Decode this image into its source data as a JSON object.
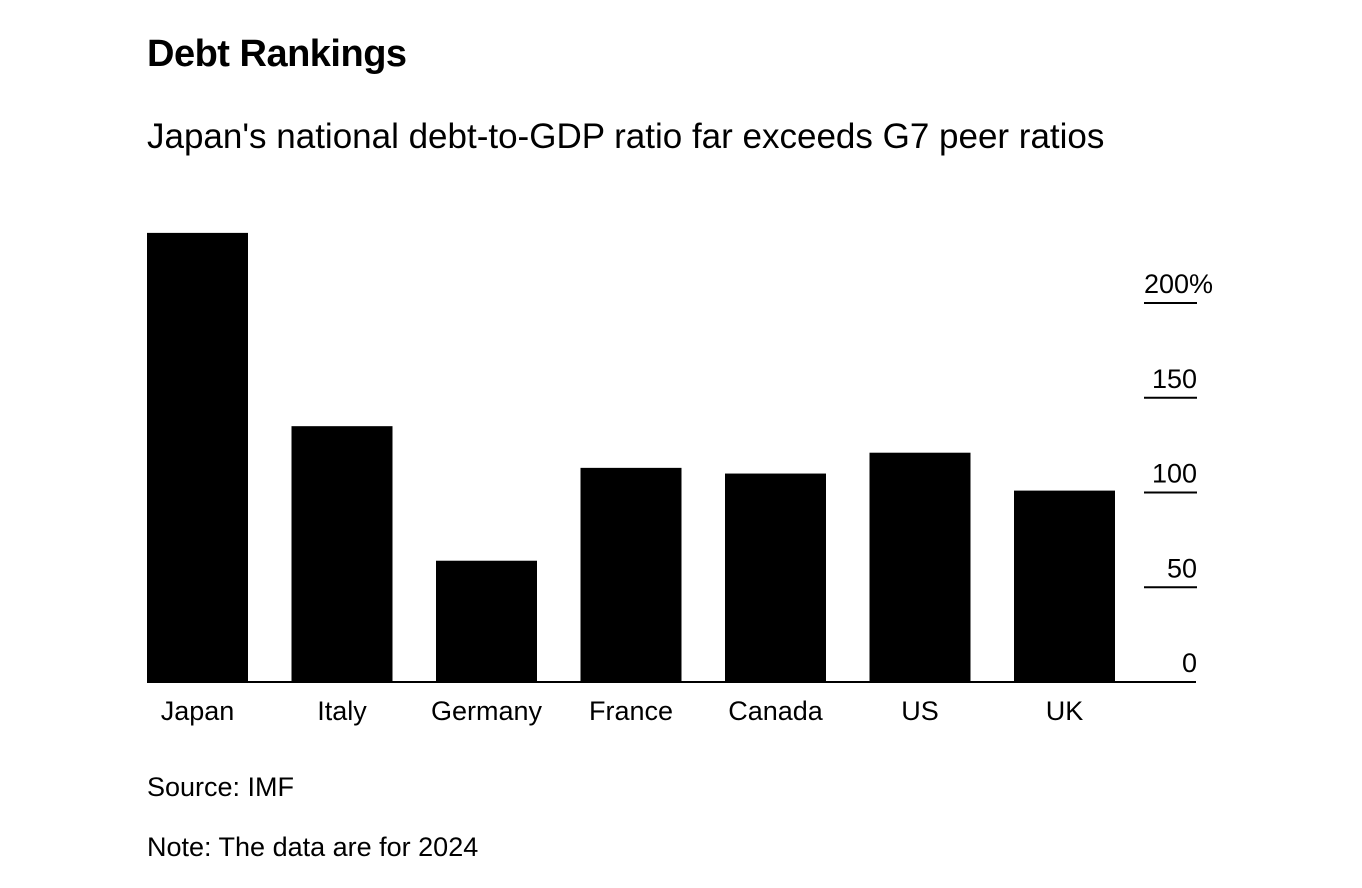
{
  "title": "Debt Rankings",
  "subtitle": "Japan's national debt-to-GDP ratio far exceeds G7 peer ratios",
  "source": "Source: IMF",
  "note": "Note: The data are for 2024",
  "chart_data": {
    "type": "bar",
    "title": "Debt Rankings",
    "subtitle": "Japan's national debt-to-GDP ratio far exceeds G7 peer ratios",
    "categories": [
      "Japan",
      "Italy",
      "Germany",
      "France",
      "Canada",
      "US",
      "UK"
    ],
    "values": [
      237,
      135,
      64,
      113,
      110,
      121,
      101
    ],
    "unit": "%",
    "ylim": [
      0,
      237
    ],
    "yticks": [
      0,
      50,
      100,
      150,
      200
    ],
    "ytick_labels": [
      "0",
      "50",
      "100",
      "150",
      "200%"
    ],
    "yaxis_side": "right",
    "xlabel": "",
    "ylabel": "",
    "grid": false,
    "bar_color": "#000000",
    "axis_color": "#000000"
  }
}
